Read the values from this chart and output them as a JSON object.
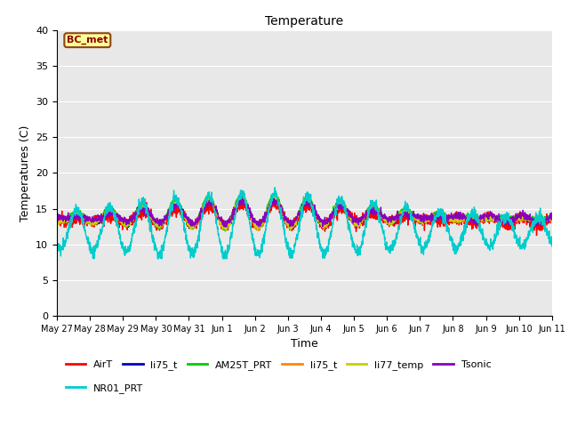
{
  "title": "Temperature",
  "xlabel": "Time",
  "ylabel": "Temperatures (C)",
  "ylim": [
    0,
    40
  ],
  "yticks": [
    0,
    5,
    10,
    15,
    20,
    25,
    30,
    35,
    40
  ],
  "xtick_labels": [
    "May 27",
    "May 28",
    "May 29",
    "May 30",
    "May 31",
    "Jun 1",
    "Jun 2",
    "Jun 3",
    "Jun 4",
    "Jun 5",
    "Jun 6",
    "Jun 7",
    "Jun 8",
    "Jun 9",
    "Jun 10",
    "Jun 11"
  ],
  "annotation_text": "BC_met",
  "annotation_color": "#8B0000",
  "annotation_bg": "#FFFF99",
  "plot_bg_color": "#E8E8E8",
  "fig_bg_color": "#FFFFFF",
  "grid_color": "#FFFFFF",
  "series": [
    {
      "label": "AirT",
      "color": "#FF0000",
      "lw": 1.0
    },
    {
      "label": "li75_t",
      "color": "#0000BB",
      "lw": 1.0
    },
    {
      "label": "AM25T_PRT",
      "color": "#00CC00",
      "lw": 1.0
    },
    {
      "label": "li75_t",
      "color": "#FF8800",
      "lw": 1.0
    },
    {
      "label": "li77_temp",
      "color": "#CCCC00",
      "lw": 1.0
    },
    {
      "label": "Tsonic",
      "color": "#8800BB",
      "lw": 1.0
    },
    {
      "label": "NR01_PRT",
      "color": "#00CCCC",
      "lw": 1.0
    }
  ],
  "n_days": 15,
  "pts_per_day": 144
}
